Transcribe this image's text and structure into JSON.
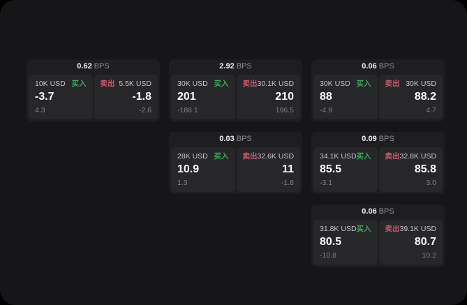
{
  "labels": {
    "bps": "BPS",
    "buy": "买入",
    "sell": "卖出"
  },
  "colors": {
    "buy": "#3fa55e",
    "sell": "#c95b6e"
  },
  "cards": [
    {
      "col": 0,
      "row": 0,
      "bps": "0.62",
      "buy": {
        "size": "10K USD",
        "price": "-3.7",
        "sub": "4.3"
      },
      "sell": {
        "size": "5.5K USD",
        "price": "-1.8",
        "sub": "-2.6"
      }
    },
    {
      "col": 1,
      "row": 0,
      "bps": "2.92",
      "buy": {
        "size": "30K USD",
        "price": "201",
        "sub": "-188.1"
      },
      "sell": {
        "size": "30.1K USD",
        "price": "210",
        "sub": "196.5"
      }
    },
    {
      "col": 2,
      "row": 0,
      "bps": "0.06",
      "buy": {
        "size": "30K USD",
        "price": "88",
        "sub": "-4.9"
      },
      "sell": {
        "size": "30K USD",
        "price": "88.2",
        "sub": "4.7"
      }
    },
    {
      "col": 1,
      "row": 1,
      "bps": "0.03",
      "buy": {
        "size": "28K USD",
        "price": "10.9",
        "sub": "1.3"
      },
      "sell": {
        "size": "32.6K USD",
        "price": "11",
        "sub": "-1.8"
      }
    },
    {
      "col": 2,
      "row": 1,
      "bps": "0.09",
      "buy": {
        "size": "34.1K USD",
        "price": "85.5",
        "sub": "-3.1"
      },
      "sell": {
        "size": "32.8K USD",
        "price": "85.8",
        "sub": "3.0"
      }
    },
    {
      "col": 2,
      "row": 2,
      "bps": "0.06",
      "buy": {
        "size": "31.8K USD",
        "price": "80.5",
        "sub": "-10.8"
      },
      "sell": {
        "size": "39.1K USD",
        "price": "80.7",
        "sub": "10.2"
      }
    }
  ]
}
